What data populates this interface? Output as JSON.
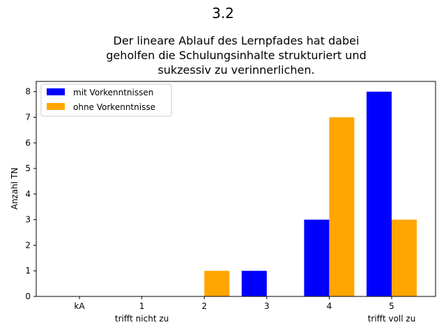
{
  "chart_data": {
    "type": "bar",
    "suptitle": "3.2",
    "title_lines": [
      "Der lineare Ablauf des Lernpfades hat dabei",
      "geholfen die Schulungsinhalte strukturiert und",
      "sukzessiv zu verinnerlichen."
    ],
    "categories": [
      "kA",
      "1",
      "2",
      "3",
      "4",
      "5"
    ],
    "category_sublabels": [
      "",
      "trifft nicht zu",
      "",
      "",
      "",
      "trifft voll zu"
    ],
    "ylabel": "Anzahl TN",
    "ylim": [
      0,
      8.4
    ],
    "yticks": [
      0,
      1,
      2,
      3,
      4,
      5,
      6,
      7,
      8
    ],
    "legend_position": "top-left",
    "grid": false,
    "series": [
      {
        "name": "mit Vorkenntnissen",
        "color": "#0000ff",
        "values": [
          0,
          0,
          0,
          1,
          3,
          8
        ]
      },
      {
        "name": "ohne Vorkenntnisse",
        "color": "#ffa500",
        "values": [
          0,
          0,
          1,
          0,
          7,
          3
        ]
      }
    ]
  }
}
